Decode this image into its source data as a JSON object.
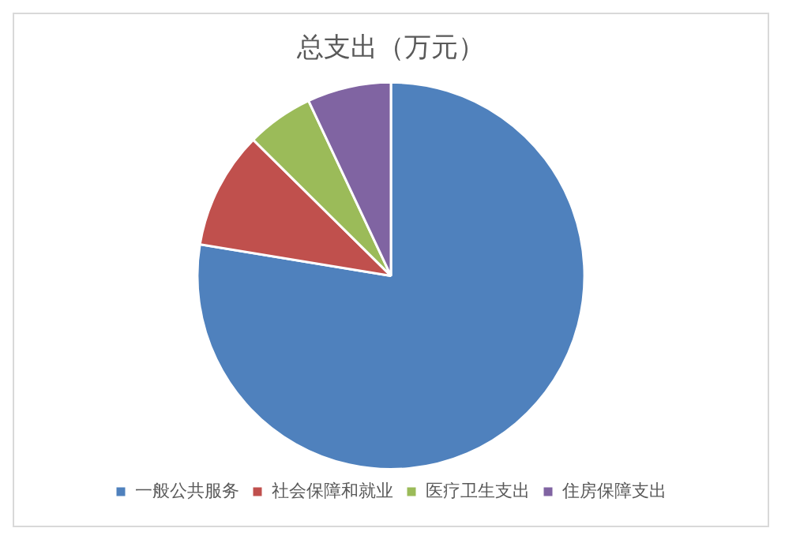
{
  "chart_data": {
    "type": "pie",
    "title": "总支出（万元）",
    "categories": [
      "一般公共服务",
      "社会保障和就业",
      "医疗卫生支出",
      "住房保障支出"
    ],
    "values": [
      77.6,
      9.8,
      5.6,
      7.0
    ],
    "colors": [
      "#4f81bd",
      "#c0504d",
      "#9bbb59",
      "#8064a2"
    ],
    "legend": "bottom"
  }
}
